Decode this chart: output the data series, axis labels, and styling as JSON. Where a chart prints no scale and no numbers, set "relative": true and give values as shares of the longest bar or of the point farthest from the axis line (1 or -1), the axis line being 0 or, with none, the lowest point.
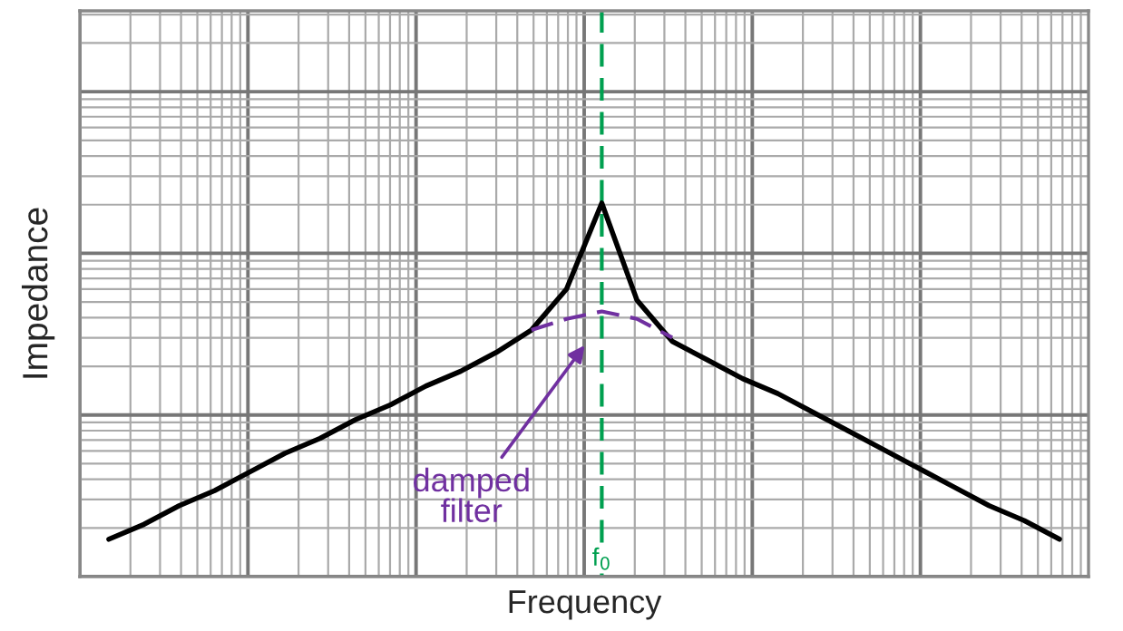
{
  "chart_data": {
    "type": "line",
    "relative": true,
    "xlabel": "Frequency",
    "ylabel": "Impedance",
    "grid": true,
    "legend": false,
    "categories": [
      null,
      null,
      null,
      null,
      null,
      null,
      null,
      null,
      null,
      null,
      null,
      null,
      null,
      null,
      null,
      null,
      null,
      null,
      null,
      null,
      null,
      null,
      null,
      null,
      null,
      null,
      null,
      null
    ],
    "series": [
      {
        "color": "#000000",
        "line_style": "solid",
        "values": [
          0.1,
          0.14,
          0.19,
          0.23,
          0.28,
          0.33,
          0.37,
          0.42,
          0.46,
          0.51,
          0.55,
          0.6,
          0.66,
          0.77,
          1,
          0.74,
          0.63,
          0.58,
          0.53,
          0.49,
          0.44,
          0.39,
          0.34,
          0.29,
          0.24,
          0.19,
          0.15,
          0.1
        ]
      },
      {
        "color": "#7030a0",
        "line_style": "dashed",
        "values": [
          null,
          null,
          null,
          null,
          null,
          null,
          null,
          null,
          null,
          null,
          null,
          null,
          0.66,
          0.69,
          0.71,
          0.69,
          0.64,
          null,
          null,
          null,
          null,
          null,
          null,
          null,
          null,
          null,
          null,
          null
        ]
      }
    ],
    "annotations": [
      "damped\nfilter",
      "f$_{0}$"
    ]
  }
}
